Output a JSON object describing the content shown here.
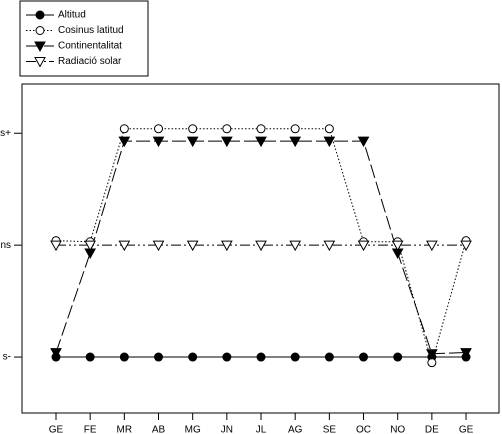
{
  "chart_data": {
    "type": "line",
    "categories": [
      "GE",
      "FE",
      "MR",
      "AB",
      "MG",
      "JN",
      "JL",
      "AG",
      "SE",
      "OC",
      "NO",
      "DE",
      "GE"
    ],
    "ylim": [
      -1.5,
      1.44
    ],
    "yticks": [
      {
        "value": -1,
        "label": "s-"
      },
      {
        "value": 0,
        "label": "ns"
      },
      {
        "value": 1,
        "label": "s+"
      }
    ],
    "legend": "top-left",
    "series": [
      {
        "name": "Altitud",
        "color": "#000000",
        "line_style": "solid",
        "marker": "filled-circle",
        "values": [
          -1,
          -1,
          -1,
          -1,
          -1,
          -1,
          -1,
          -1,
          -1,
          -1,
          -1,
          -1,
          -1
        ]
      },
      {
        "name": "Cosinus latitud",
        "color": "#000000",
        "line_style": "dotted",
        "marker": "open-circle",
        "values": [
          0.04,
          0.03,
          1.04,
          1.04,
          1.04,
          1.04,
          1.04,
          1.04,
          1.04,
          0.03,
          0.03,
          -1.05,
          0.04
        ]
      },
      {
        "name": "Continentalitat",
        "color": "#000000",
        "line_style": "dashed",
        "marker": "filled-triangle-down",
        "values": [
          -0.96,
          -0.07,
          0.93,
          0.93,
          0.93,
          0.93,
          0.93,
          0.93,
          0.93,
          0.93,
          -0.07,
          -0.97,
          -0.96
        ]
      },
      {
        "name": "Radiació solar",
        "color": "#000000",
        "line_style": "dashdotdot",
        "marker": "open-triangle-down",
        "values": [
          0,
          0,
          0,
          0,
          0,
          0,
          0,
          0,
          0,
          0,
          0,
          0,
          0
        ]
      }
    ]
  }
}
